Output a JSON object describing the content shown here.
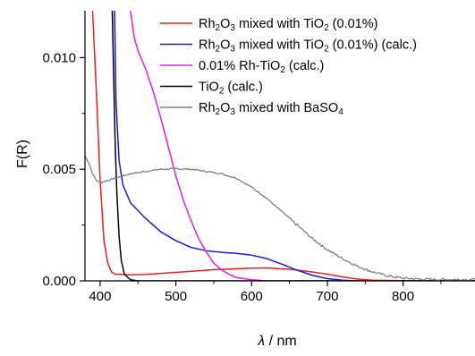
{
  "chart_data": {
    "type": "line",
    "xlabel": {
      "symbol": "λ",
      "unit": " / nm"
    },
    "ylabel": "F(R)",
    "xlim": [
      380,
      895
    ],
    "ylim": [
      0,
      0.0121
    ],
    "x_ticks": [
      400,
      500,
      600,
      700,
      800
    ],
    "y_ticks": [
      0.0,
      0.005,
      0.01
    ],
    "y_tick_labels": [
      "0.000",
      "0.005",
      "0.010"
    ],
    "grid": false,
    "legend_position": "top-right",
    "series": [
      {
        "name": "Rh2O3 mixed with TiO2 (0.01%)",
        "legend": [
          [
            "Rh",
            "n"
          ],
          [
            "2",
            "sub"
          ],
          [
            "O",
            "n"
          ],
          [
            "3",
            "sub"
          ],
          [
            " mixed with TiO",
            "n"
          ],
          [
            "2",
            "sub"
          ],
          [
            " (0.01%)",
            "n"
          ]
        ],
        "color": "#e8201e",
        "points": [
          [
            390,
            0.0121
          ],
          [
            395,
            0.0085
          ],
          [
            400,
            0.0045
          ],
          [
            405,
            0.0018
          ],
          [
            410,
            0.0008
          ],
          [
            415,
            0.0004
          ],
          [
            420,
            0.0003
          ],
          [
            440,
            0.00027
          ],
          [
            460,
            0.00029
          ],
          [
            500,
            0.00038
          ],
          [
            550,
            0.0005
          ],
          [
            600,
            0.00057
          ],
          [
            620,
            0.00058
          ],
          [
            650,
            0.00052
          ],
          [
            680,
            0.0004
          ],
          [
            700,
            0.0003
          ],
          [
            720,
            0.00018
          ],
          [
            740,
            8e-05
          ],
          [
            760,
            3e-05
          ],
          [
            800,
            1e-05
          ],
          [
            895,
            0.0
          ]
        ]
      },
      {
        "name": "Rh2O3 mixed with TiO2 (0.01%) (calc.)",
        "legend": [
          [
            "Rh",
            "n"
          ],
          [
            "2",
            "sub"
          ],
          [
            "O",
            "n"
          ],
          [
            "3",
            "sub"
          ],
          [
            " mixed with TiO",
            "n"
          ],
          [
            "2",
            "sub"
          ],
          [
            " (0.01%) (calc.)",
            "n"
          ]
        ],
        "color": "#1a1adc",
        "points": [
          [
            419,
            0.0121
          ],
          [
            421,
            0.008
          ],
          [
            425,
            0.0054
          ],
          [
            430,
            0.0043
          ],
          [
            440,
            0.0035
          ],
          [
            460,
            0.0028
          ],
          [
            480,
            0.0022
          ],
          [
            500,
            0.0018
          ],
          [
            520,
            0.0015
          ],
          [
            540,
            0.00135
          ],
          [
            560,
            0.00128
          ],
          [
            580,
            0.00123
          ],
          [
            600,
            0.00115
          ],
          [
            620,
            0.001
          ],
          [
            640,
            0.00075
          ],
          [
            660,
            0.00048
          ],
          [
            680,
            0.00025
          ],
          [
            700,
            0.0001
          ],
          [
            720,
            3e-05
          ],
          [
            740,
            0.0
          ],
          [
            895,
            0.0
          ]
        ]
      },
      {
        "name": "0.01% Rh-TiO2 (calc.)",
        "legend": [
          [
            "0.01% Rh-TiO",
            "n"
          ],
          [
            "2",
            "sub"
          ],
          [
            " (calc.)",
            "n"
          ]
        ],
        "color": "#e020e0",
        "points": [
          [
            440,
            0.0121
          ],
          [
            445,
            0.0109
          ],
          [
            450,
            0.0103
          ],
          [
            460,
            0.0095
          ],
          [
            470,
            0.0085
          ],
          [
            480,
            0.0073
          ],
          [
            490,
            0.006
          ],
          [
            500,
            0.0047
          ],
          [
            510,
            0.0036
          ],
          [
            520,
            0.0027
          ],
          [
            530,
            0.0019
          ],
          [
            540,
            0.0013
          ],
          [
            550,
            0.0008
          ],
          [
            560,
            0.0005
          ],
          [
            570,
            0.0003
          ],
          [
            580,
            0.00015
          ],
          [
            600,
            5e-05
          ],
          [
            620,
            0.0
          ],
          [
            895,
            0.0
          ]
        ]
      },
      {
        "name": "TiO2 (calc.)",
        "legend": [
          [
            "TiO",
            "n"
          ],
          [
            "2",
            "sub"
          ],
          [
            " (calc.)",
            "n"
          ]
        ],
        "color": "#000000",
        "points": [
          [
            416,
            0.0121
          ],
          [
            418,
            0.009
          ],
          [
            420,
            0.006
          ],
          [
            422,
            0.004
          ],
          [
            425,
            0.002
          ],
          [
            428,
            0.0009
          ],
          [
            432,
            0.0003
          ],
          [
            440,
            5e-05
          ],
          [
            450,
            0.0
          ],
          [
            895,
            0.0
          ]
        ]
      },
      {
        "name": "Rh2O3 mixed with BaSO4",
        "legend": [
          [
            "Rh",
            "n"
          ],
          [
            "2",
            "sub"
          ],
          [
            "O",
            "n"
          ],
          [
            "3",
            "sub"
          ],
          [
            " mixed with BaSO",
            "n"
          ],
          [
            "4",
            "sub"
          ]
        ],
        "color": "#808080",
        "noisy": true,
        "points": [
          [
            380,
            0.0056
          ],
          [
            385,
            0.0053
          ],
          [
            390,
            0.0048
          ],
          [
            395,
            0.0045
          ],
          [
            400,
            0.0044
          ],
          [
            410,
            0.0045
          ],
          [
            420,
            0.0046
          ],
          [
            440,
            0.0048
          ],
          [
            460,
            0.0049
          ],
          [
            480,
            0.005
          ],
          [
            500,
            0.00502
          ],
          [
            520,
            0.005
          ],
          [
            540,
            0.0049
          ],
          [
            560,
            0.0048
          ],
          [
            580,
            0.0046
          ],
          [
            600,
            0.0042
          ],
          [
            620,
            0.0037
          ],
          [
            640,
            0.0031
          ],
          [
            660,
            0.0025
          ],
          [
            680,
            0.0019
          ],
          [
            700,
            0.0014
          ],
          [
            720,
            0.001
          ],
          [
            740,
            0.00065
          ],
          [
            760,
            0.0004
          ],
          [
            780,
            0.00022
          ],
          [
            800,
            0.00012
          ],
          [
            820,
            8e-05
          ],
          [
            850,
            6e-05
          ],
          [
            880,
            6e-05
          ],
          [
            895,
            6e-05
          ]
        ]
      }
    ]
  }
}
